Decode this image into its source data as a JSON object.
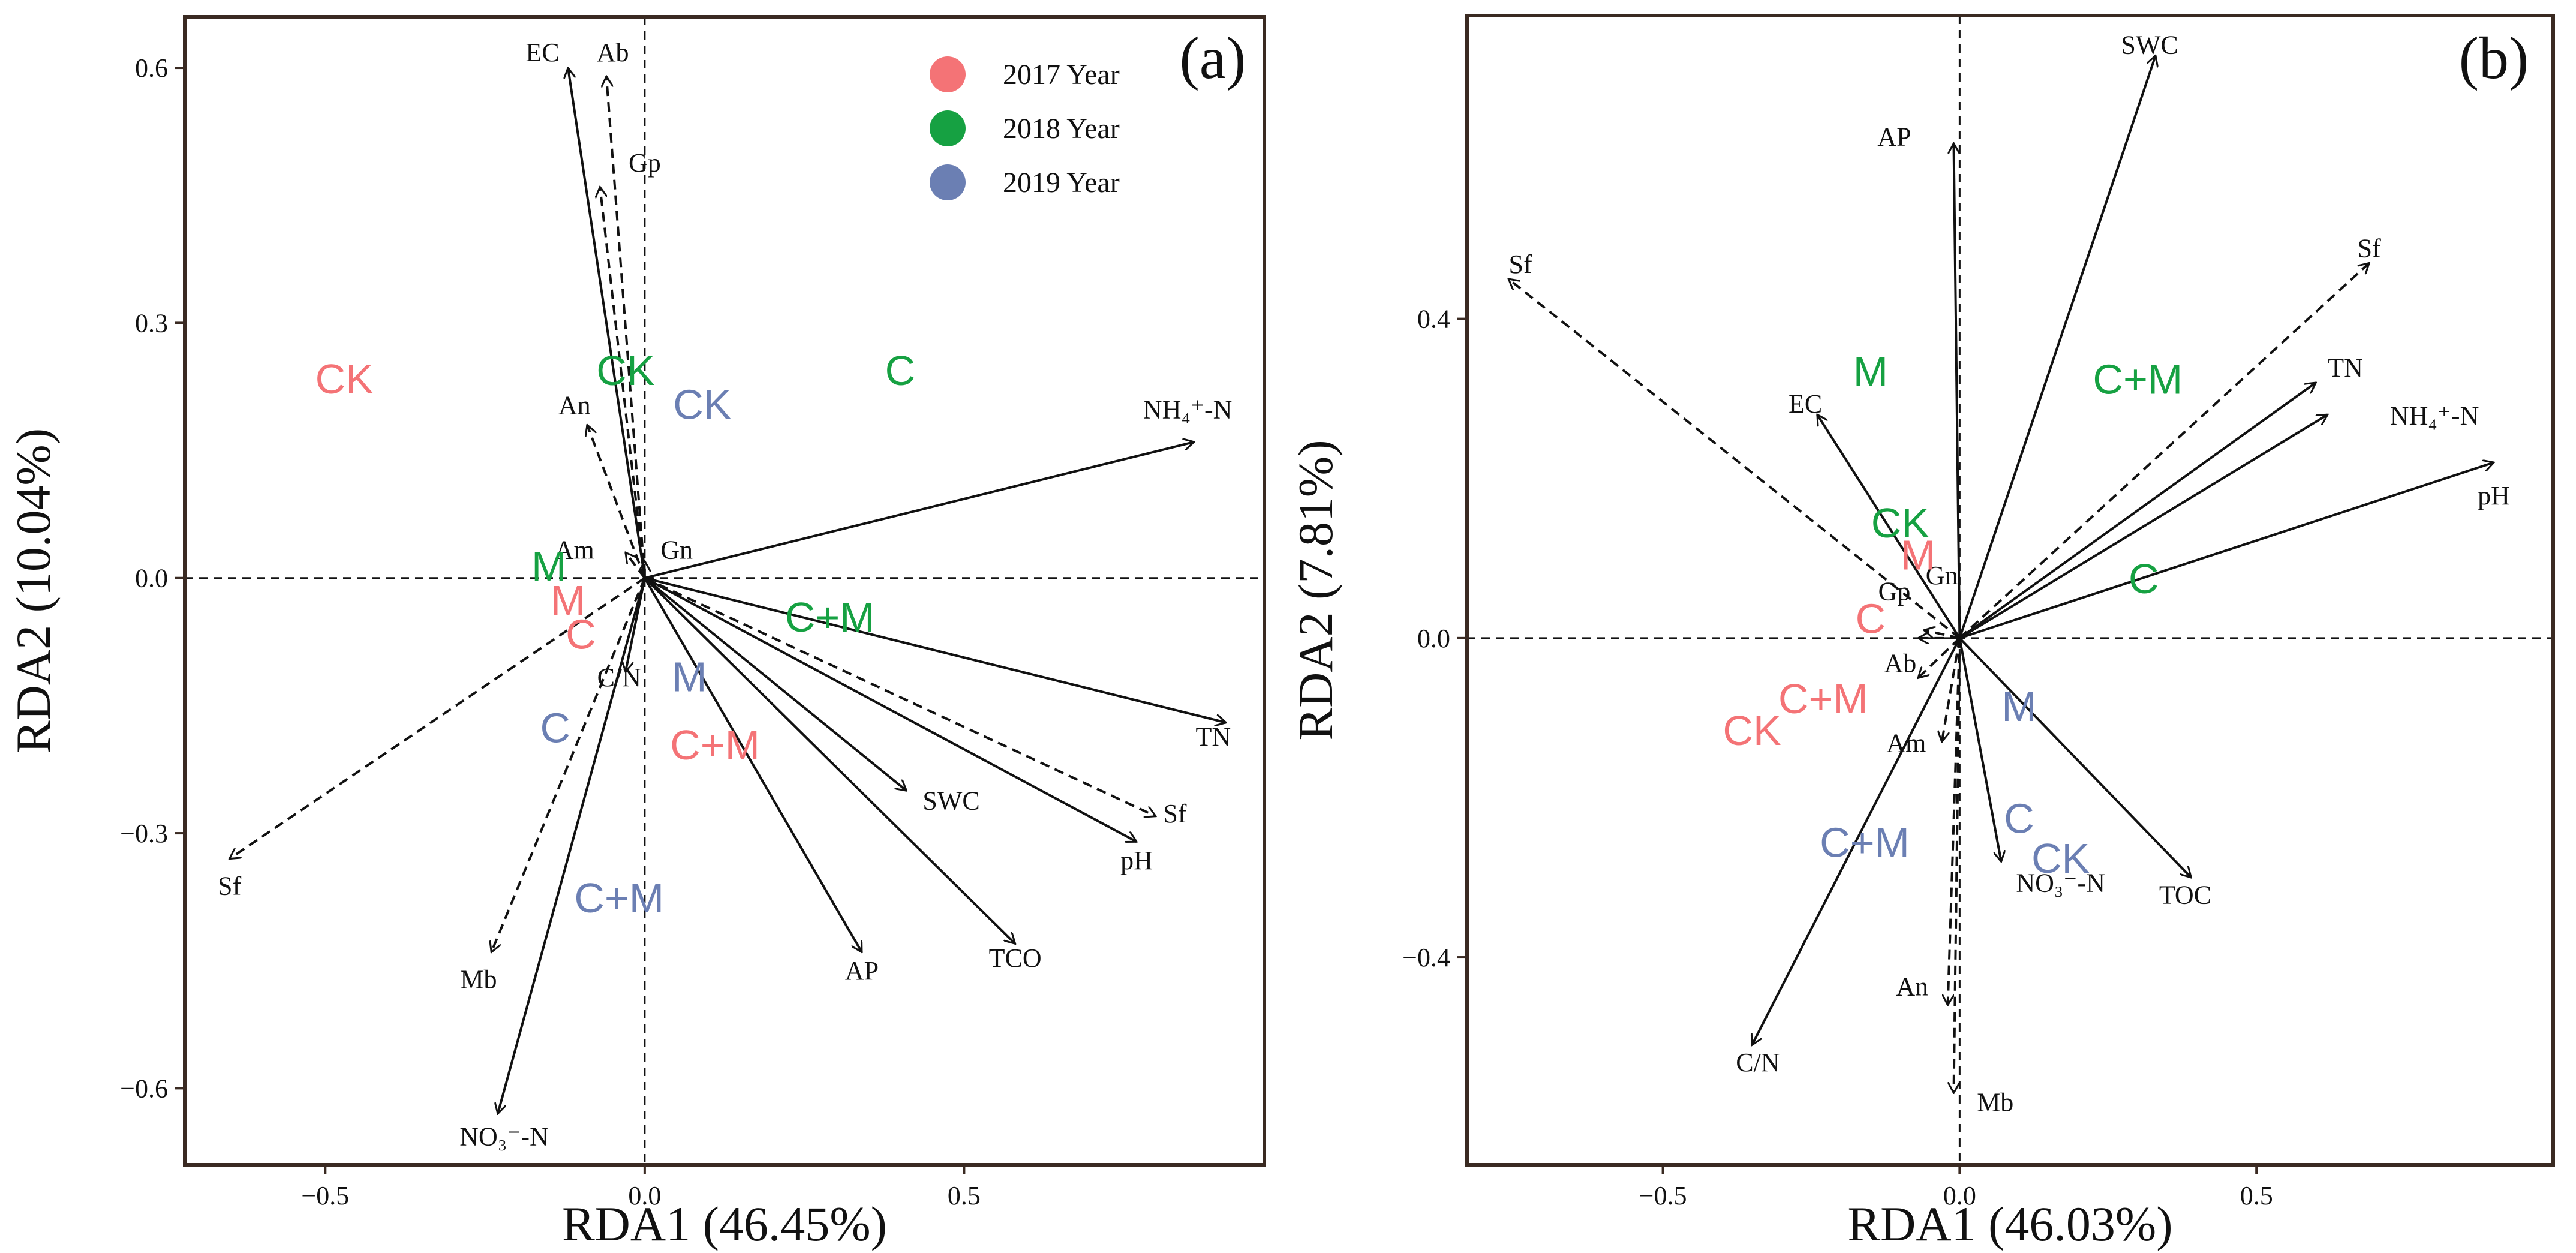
{
  "colors": {
    "y2017": "#f47376",
    "y2018": "#16a142",
    "y2019": "#6b7fb3",
    "ink": "#111111",
    "frame": "#3a2a22"
  },
  "chart_data": [
    {
      "type": "scatter",
      "panel_label": "(a)",
      "xlabel": "RDA1 (46.45%)",
      "ylabel": "RDA2 (10.04%)",
      "xlim": [
        -0.72,
        0.97
      ],
      "ylim": [
        -0.69,
        0.66
      ],
      "xticks": [
        -0.5,
        0.0,
        0.5
      ],
      "xtick_labels": [
        "−0.5",
        "0.0",
        "0.5"
      ],
      "yticks": [
        0.6,
        0.3,
        0.0,
        -0.3,
        -0.6
      ],
      "ytick_labels": [
        "0.6",
        "0.3",
        "0.0",
        "−0.3",
        "−0.6"
      ],
      "legend": {
        "position": "top-right",
        "entries": [
          {
            "label": "2017 Year",
            "color_key": "y2017"
          },
          {
            "label": "2018 Year",
            "color_key": "y2018"
          },
          {
            "label": "2019 Year",
            "color_key": "y2019"
          }
        ]
      },
      "arrows": [
        {
          "label": "EC",
          "x": -0.12,
          "y": 0.6,
          "dashed": false,
          "lx": -0.16,
          "ly": 0.615
        },
        {
          "label": "Ab",
          "x": -0.06,
          "y": 0.59,
          "dashed": true,
          "lx": -0.05,
          "ly": 0.615
        },
        {
          "label": "Gp",
          "x": -0.07,
          "y": 0.46,
          "dashed": true,
          "lx": 0.0,
          "ly": 0.485
        },
        {
          "label": "An",
          "x": -0.09,
          "y": 0.18,
          "dashed": true,
          "lx": -0.11,
          "ly": 0.2
        },
        {
          "label": "Am",
          "x": -0.03,
          "y": 0.03,
          "dashed": true,
          "lx": -0.11,
          "ly": 0.03
        },
        {
          "label": "Gn",
          "x": 0.0,
          "y": 0.02,
          "dashed": true,
          "lx": 0.05,
          "ly": 0.03
        },
        {
          "label": "NH₄⁺-N",
          "x": 0.86,
          "y": 0.16,
          "dashed": false,
          "lx": 0.85,
          "ly": 0.195
        },
        {
          "label": "TN",
          "x": 0.91,
          "y": -0.17,
          "dashed": false,
          "lx": 0.89,
          "ly": -0.19
        },
        {
          "label": "Sf",
          "x": 0.8,
          "y": -0.28,
          "dashed": true,
          "lx": 0.83,
          "ly": -0.28
        },
        {
          "label": "pH",
          "x": 0.77,
          "y": -0.31,
          "dashed": false,
          "lx": 0.77,
          "ly": -0.335
        },
        {
          "label": "SWC",
          "x": 0.41,
          "y": -0.25,
          "dashed": false,
          "lx": 0.48,
          "ly": -0.265
        },
        {
          "label": "TCO",
          "x": 0.58,
          "y": -0.43,
          "dashed": false,
          "lx": 0.58,
          "ly": -0.45
        },
        {
          "label": "AP",
          "x": 0.34,
          "y": -0.44,
          "dashed": false,
          "lx": 0.34,
          "ly": -0.465
        },
        {
          "label": "C/N",
          "x": -0.03,
          "y": -0.11,
          "dashed": false,
          "lx": -0.04,
          "ly": -0.12
        },
        {
          "label": "Sf",
          "x": -0.65,
          "y": -0.33,
          "dashed": true,
          "lx": -0.65,
          "ly": -0.365
        },
        {
          "label": "Mb",
          "x": -0.24,
          "y": -0.44,
          "dashed": true,
          "lx": -0.26,
          "ly": -0.475
        },
        {
          "label": "NO₃⁻-N",
          "x": -0.23,
          "y": -0.63,
          "dashed": false,
          "lx": -0.22,
          "ly": -0.66
        }
      ],
      "treatments": [
        {
          "label": "CK",
          "year": "2017",
          "x": -0.47,
          "y": 0.23
        },
        {
          "label": "M",
          "year": "2017",
          "x": -0.12,
          "y": -0.03
        },
        {
          "label": "C",
          "year": "2017",
          "x": -0.1,
          "y": -0.07
        },
        {
          "label": "C+M",
          "year": "2017",
          "x": 0.11,
          "y": -0.2
        },
        {
          "label": "CK",
          "year": "2018",
          "x": -0.03,
          "y": 0.24
        },
        {
          "label": "C",
          "year": "2018",
          "x": 0.4,
          "y": 0.24
        },
        {
          "label": "M",
          "year": "2018",
          "x": -0.15,
          "y": 0.01
        },
        {
          "label": "C+M",
          "year": "2018",
          "x": 0.29,
          "y": -0.05
        },
        {
          "label": "CK",
          "year": "2019",
          "x": 0.09,
          "y": 0.2
        },
        {
          "label": "M",
          "year": "2019",
          "x": 0.07,
          "y": -0.12
        },
        {
          "label": "C",
          "year": "2019",
          "x": -0.14,
          "y": -0.18
        },
        {
          "label": "C+M",
          "year": "2019",
          "x": -0.04,
          "y": -0.38
        }
      ]
    },
    {
      "type": "scatter",
      "panel_label": "(b)",
      "xlabel": "RDA1 (46.03%)",
      "ylabel": "RDA2 (7.81%)",
      "xlim": [
        -0.83,
        1.0
      ],
      "ylim": [
        -0.66,
        0.78
      ],
      "xticks": [
        -0.5,
        0.0,
        0.5
      ],
      "xtick_labels": [
        "−0.5",
        "0.0",
        "0.5"
      ],
      "yticks": [
        0.4,
        0.0,
        -0.4
      ],
      "ytick_labels": [
        "0.4",
        "0.0",
        "−0.4"
      ],
      "arrows": [
        {
          "label": "SWC",
          "x": 0.33,
          "y": 0.73,
          "dashed": false,
          "lx": 0.32,
          "ly": 0.74
        },
        {
          "label": "AP",
          "x": -0.01,
          "y": 0.62,
          "dashed": false,
          "lx": -0.11,
          "ly": 0.625
        },
        {
          "label": "Sf",
          "x": -0.76,
          "y": 0.45,
          "dashed": true,
          "lx": -0.74,
          "ly": 0.465
        },
        {
          "label": "Sf",
          "x": 0.69,
          "y": 0.47,
          "dashed": true,
          "lx": 0.69,
          "ly": 0.485
        },
        {
          "label": "TN",
          "x": 0.6,
          "y": 0.32,
          "dashed": false,
          "lx": 0.65,
          "ly": 0.335
        },
        {
          "label": "NH₄⁺-N",
          "x": 0.62,
          "y": 0.28,
          "dashed": false,
          "lx": 0.8,
          "ly": 0.275
        },
        {
          "label": "pH",
          "x": 0.9,
          "y": 0.22,
          "dashed": false,
          "lx": 0.9,
          "ly": 0.175
        },
        {
          "label": "EC",
          "x": -0.24,
          "y": 0.28,
          "dashed": false,
          "lx": -0.26,
          "ly": 0.29
        },
        {
          "label": "Gn",
          "x": -0.06,
          "y": 0.01,
          "dashed": true,
          "lx": -0.03,
          "ly": 0.075
        },
        {
          "label": "Gp",
          "x": -0.07,
          "y": 0.0,
          "dashed": true,
          "lx": -0.11,
          "ly": 0.055
        },
        {
          "label": "Ab",
          "x": -0.07,
          "y": -0.05,
          "dashed": true,
          "lx": -0.1,
          "ly": -0.035
        },
        {
          "label": "Am",
          "x": -0.03,
          "y": -0.13,
          "dashed": true,
          "lx": -0.09,
          "ly": -0.135
        },
        {
          "label": "NO₃⁻-N",
          "x": 0.07,
          "y": -0.28,
          "dashed": false,
          "lx": 0.17,
          "ly": -0.31
        },
        {
          "label": "TOC",
          "x": 0.39,
          "y": -0.3,
          "dashed": false,
          "lx": 0.38,
          "ly": -0.325
        },
        {
          "label": "An",
          "x": -0.02,
          "y": -0.46,
          "dashed": true,
          "lx": -0.08,
          "ly": -0.44
        },
        {
          "label": "Mb",
          "x": -0.01,
          "y": -0.57,
          "dashed": true,
          "lx": 0.06,
          "ly": -0.585
        },
        {
          "label": "C/N",
          "x": -0.35,
          "y": -0.51,
          "dashed": false,
          "lx": -0.34,
          "ly": -0.535
        }
      ],
      "treatments": [
        {
          "label": "M",
          "year": "2017",
          "x": -0.07,
          "y": 0.1
        },
        {
          "label": "C",
          "year": "2017",
          "x": -0.15,
          "y": 0.02
        },
        {
          "label": "C+M",
          "year": "2017",
          "x": -0.23,
          "y": -0.08
        },
        {
          "label": "CK",
          "year": "2017",
          "x": -0.35,
          "y": -0.12
        },
        {
          "label": "M",
          "year": "2018",
          "x": -0.15,
          "y": 0.33
        },
        {
          "label": "C+M",
          "year": "2018",
          "x": 0.3,
          "y": 0.32
        },
        {
          "label": "CK",
          "year": "2018",
          "x": -0.1,
          "y": 0.14
        },
        {
          "label": "C",
          "year": "2018",
          "x": 0.31,
          "y": 0.07
        },
        {
          "label": "M",
          "year": "2019",
          "x": 0.1,
          "y": -0.09
        },
        {
          "label": "C",
          "year": "2019",
          "x": 0.1,
          "y": -0.23
        },
        {
          "label": "CK",
          "year": "2019",
          "x": 0.17,
          "y": -0.28
        },
        {
          "label": "C+M",
          "year": "2019",
          "x": -0.16,
          "y": -0.26
        }
      ]
    }
  ]
}
